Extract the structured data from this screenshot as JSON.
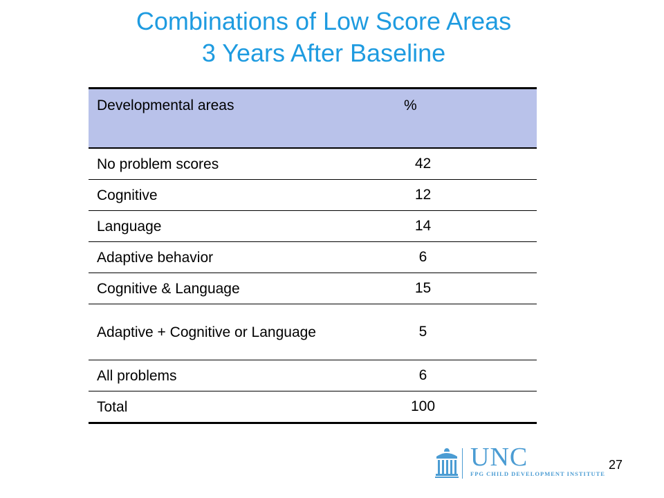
{
  "title": {
    "line1": "Combinations of Low Score Areas",
    "line2": "3 Years After Baseline"
  },
  "table": {
    "headers": [
      "Developmental areas",
      "%"
    ],
    "rows": [
      {
        "label": "No problem scores",
        "value": "42"
      },
      {
        "label": "Cognitive",
        "value": "12"
      },
      {
        "label": "Language",
        "value": "14"
      },
      {
        "label": "Adaptive behavior",
        "value": "6"
      },
      {
        "label": "Cognitive & Language",
        "value": "15"
      },
      {
        "label": "Adaptive + Cognitive or Language",
        "value": "5"
      },
      {
        "label": "All problems",
        "value": "6"
      },
      {
        "label": "Total",
        "value": "100"
      }
    ]
  },
  "logo": {
    "name": "UNC",
    "subtitle": "FPG CHILD DEVELOPMENT INSTITUTE",
    "icon": "old-well-icon",
    "color": "#4b9cd3"
  },
  "page_number": "27",
  "colors": {
    "title": "#1e9be0",
    "header_fill": "#b9c2ea"
  }
}
